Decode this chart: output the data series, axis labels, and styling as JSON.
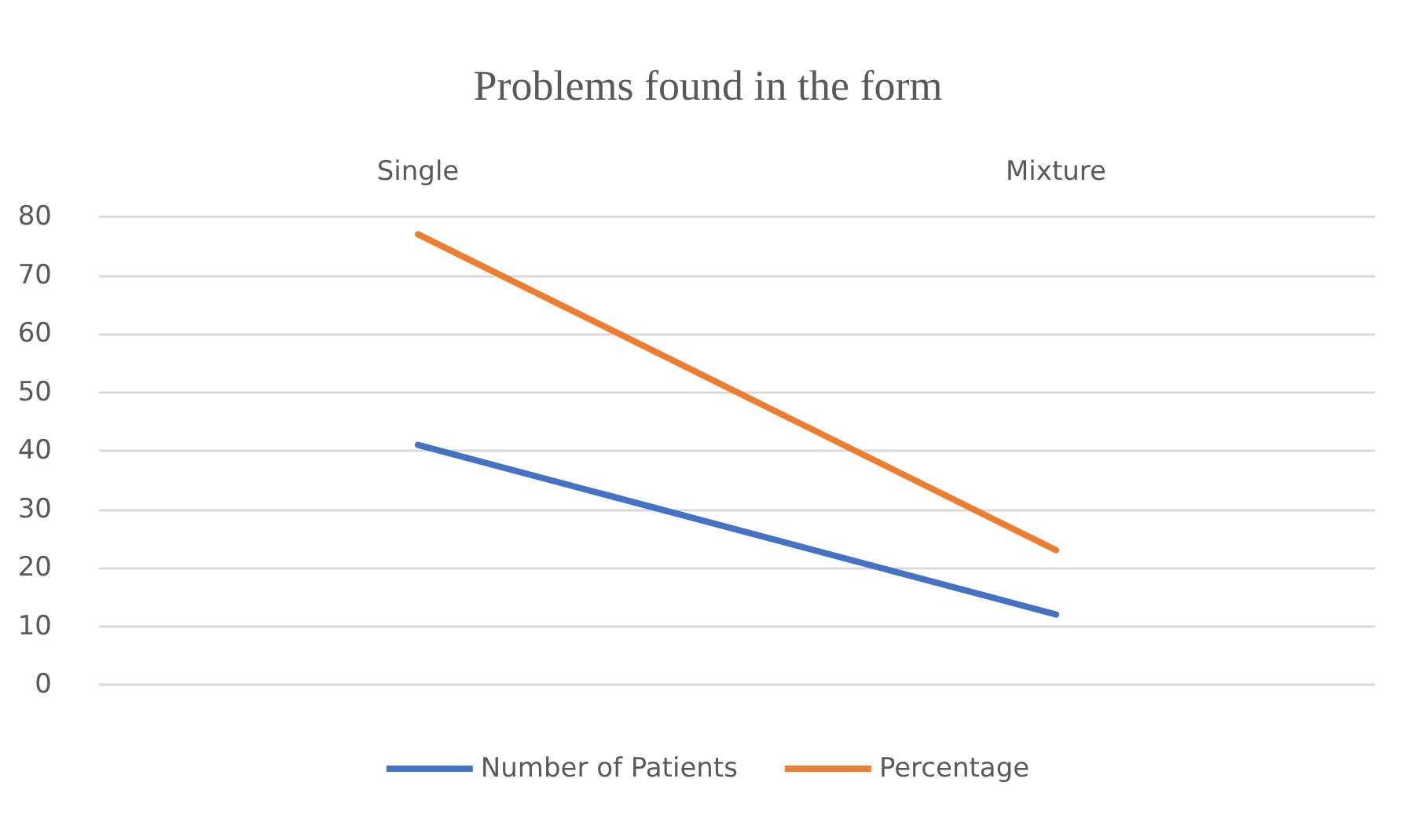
{
  "chart_data": {
    "type": "line",
    "title": "Problems found in the form",
    "categories": [
      "Single",
      "Mixture"
    ],
    "series": [
      {
        "name": "Number of Patients",
        "color": "#4472c4",
        "values": [
          41,
          12
        ]
      },
      {
        "name": "Percentage",
        "color": "#ed7d31",
        "values": [
          77,
          23
        ]
      }
    ],
    "ylim": [
      0,
      80
    ],
    "yticks": [
      0,
      10,
      20,
      30,
      40,
      50,
      60,
      70,
      80
    ],
    "grid": "y",
    "legend": "bottom",
    "marker": "none",
    "line_style": "solid"
  }
}
